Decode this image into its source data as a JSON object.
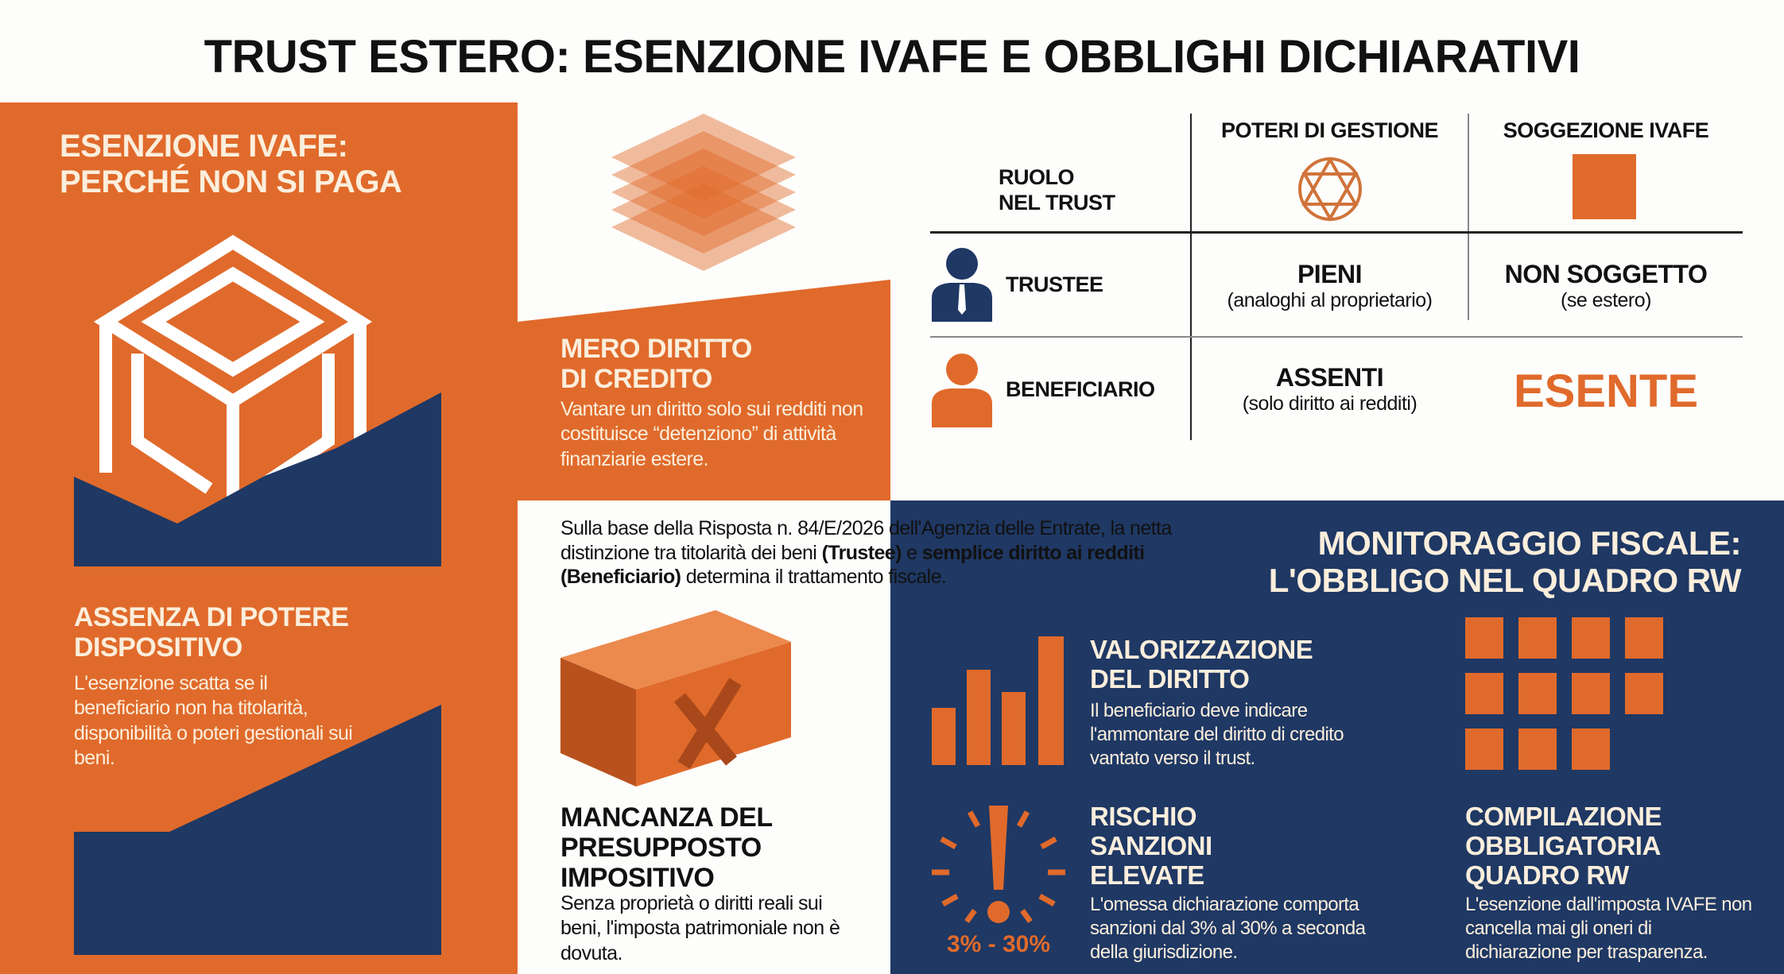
{
  "title": "TRUST ESTERO: ESENZIONE IVAFE E OBBLIGHI DICHIARATIVI",
  "colors": {
    "orange": "#e06a2b",
    "navy": "#1f3864",
    "cream": "#fbeedc"
  },
  "left": {
    "heading_line1": "ESENZIONE IVAFE:",
    "heading_line2": "PERCHÉ NON SI PAGA",
    "section": {
      "title_line1": "ASSENZA DI POTERE",
      "title_line2": "DISPOSITIVO",
      "body": "L'esenzione scatta se il beneficiario non ha titolarità, disponibilità o poteri gestionali sui beni."
    }
  },
  "middle": {
    "credit": {
      "title_line1": "MERO DIRITTO",
      "title_line2": "DI CREDITO",
      "body": "Vantare un diritto solo sui redditi non costituisce “detenziono” di attività finanziarie estere."
    },
    "intro": {
      "part1": "Sulla base della Risposta n. 84/E/2026 dell'Agenzia delle Entrate, la netta distinzione tra titolarità dei beni ",
      "bold1": "(Trustee)",
      "part2": " e ",
      "bold2": "semplice diritto ai redditi (Beneficiario)",
      "part3": " determina il trattamento fiscale."
    },
    "missing": {
      "title_line1": "MANCANZA DEL",
      "title_line2": "PRESUPPOSTO",
      "title_line3": "IMPOSITIVO",
      "body": "Senza proprietà o diritti reali sui beni, l'imposta patrimoniale non è dovuta."
    }
  },
  "table": {
    "corner_line1": "RUOLO",
    "corner_line2": "NEL TRUST",
    "col1": "POTERI DI GESTIONE",
    "col2": "SOGGEZIONE IVAFE",
    "rows": [
      {
        "role": "TRUSTEE",
        "icon": "person-suit-icon",
        "powers": "PIENI",
        "powers_note": "(analoghi al proprietario)",
        "ivafe": "NON SOGGETTO",
        "ivafe_note": "(se estero)"
      },
      {
        "role": "BENEFICIARIO",
        "icon": "person-icon",
        "powers": "ASSENTI",
        "powers_note": "(solo diritto ai redditi)",
        "ivafe": "ESENTE"
      }
    ]
  },
  "monitoring": {
    "heading_line1": "MONITORAGGIO FISCALE:",
    "heading_line2": "L'OBBLIGO NEL QUADRO RW",
    "valuation": {
      "title_line1": "VALORIZZAZIONE",
      "title_line2": "DEL DIRITTO",
      "body": "Il beneficiario deve indicare l'ammontare del diritto di credito vantato verso il trust."
    },
    "risk": {
      "title_line1": "RISCHIO",
      "title_line2": "SANZIONI",
      "title_line3": "ELEVATE",
      "badge": "3% - 30%",
      "body": "L'omessa dichiarazione comporta sanzioni dal 3% al 30% a seconda della giurisdizione."
    },
    "compilation": {
      "title_line1": "COMPILAZIONE",
      "title_line2": "OBBLIGATORIA",
      "title_line3": "QUADRO RW",
      "body": "L'esenzione dall'imposta IVAFE non cancella mai gli oneri di dichiarazione per trasparenza."
    }
  }
}
